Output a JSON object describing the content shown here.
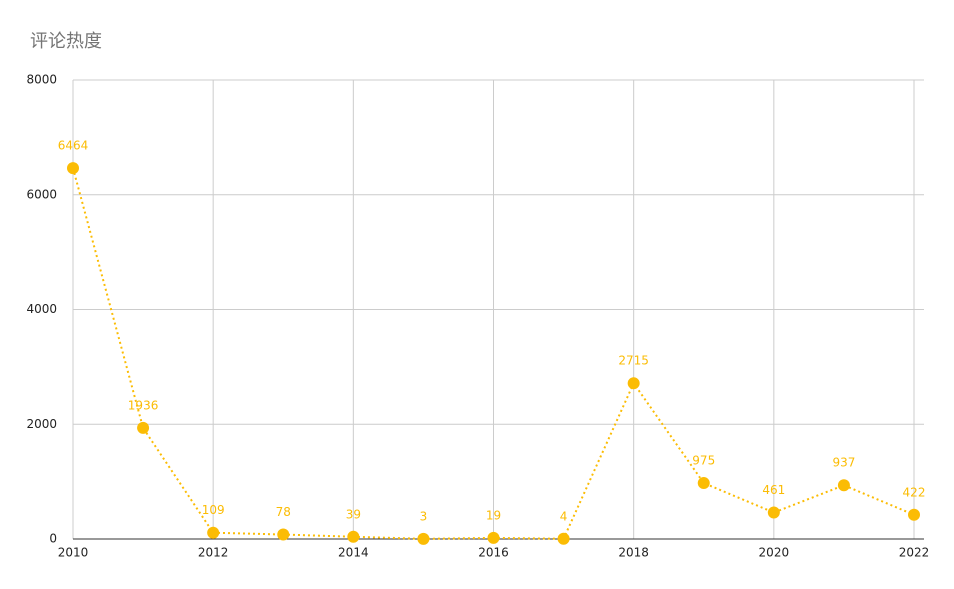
{
  "chart_data": {
    "type": "line",
    "title": "评论热度",
    "x": [
      2010,
      2011,
      2012,
      2013,
      2014,
      2015,
      2016,
      2017,
      2018,
      2019,
      2020,
      2021,
      2022
    ],
    "values": [
      6464,
      1936,
      109,
      78,
      39,
      3,
      19,
      4,
      2715,
      975,
      461,
      937,
      422
    ],
    "color": "#fbbc04",
    "xlim": [
      2010,
      2022
    ],
    "xticks": [
      2010,
      2012,
      2014,
      2016,
      2018,
      2020,
      2022
    ],
    "ylim": [
      0,
      8000
    ],
    "yticks": [
      0,
      2000,
      4000,
      6000,
      8000
    ],
    "grid": true
  }
}
